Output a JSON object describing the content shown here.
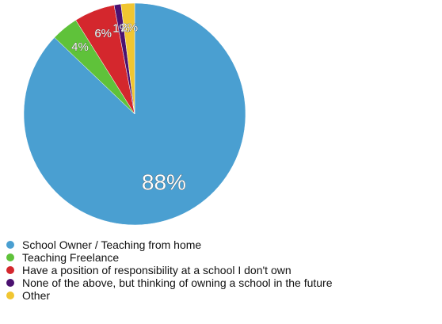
{
  "chart_data": {
    "type": "pie",
    "labels": [
      "School Owner / Teaching from home",
      "Teaching Freelance",
      "Have a position of responsibility at a school I don't own",
      "None of the above, but thinking of owning a school in the future",
      "Other"
    ],
    "values": [
      88,
      4,
      6,
      1,
      2
    ],
    "value_labels": [
      "88%",
      "4%",
      "6%",
      "1%",
      "2%"
    ],
    "colors": [
      "#4a9fd1",
      "#5fc23a",
      "#d4272d",
      "#4b1170",
      "#f1c631"
    ],
    "legend_position": "bottom-left",
    "start_angle": "12 o'clock",
    "direction": "clockwise"
  }
}
